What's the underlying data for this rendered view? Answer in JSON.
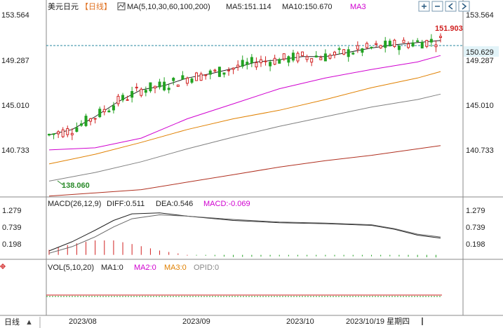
{
  "header": {
    "symbol": "美元日元",
    "period": "【日线】",
    "ma_label": "MA(5,10,30,60,100,200)",
    "ma5": "MA5:151.114",
    "ma10": "MA10:150.670",
    "ma3": "MA3"
  },
  "macd_header": {
    "label": "MACD(26,12,9)",
    "diff": "DIFF:0.511",
    "dea": "DEA:0.546",
    "macd": "MACD:-0.069"
  },
  "vol_header": {
    "label": "VOL(5,10,20)",
    "ma1": "MA1:0",
    "ma2": "MA2:0",
    "ma3": "MA3:0",
    "opid": "OPID:0"
  },
  "toolbar": {
    "icons": [
      "zoom-in-icon",
      "zoom-out-icon",
      "scroll-left-icon",
      "scroll-right-icon"
    ]
  },
  "footer": {
    "period_button": "日线",
    "period_caret": "▲",
    "x_ticks": [
      "2023/08",
      "2023/09",
      "2023/10"
    ],
    "cursor_date": "2023/10/19 星期四"
  },
  "colors": {
    "up": "#22a222",
    "down": "#d22222",
    "ma5": "#222222",
    "ma10": "#666666",
    "ma_magenta": "#d000d0",
    "ma_orange": "#e08000",
    "ma_gray": "#808080",
    "ma_red": "#b03020",
    "diff": "#222222",
    "dea": "#666666",
    "ref_line": "#2a8aa0",
    "high_label": "#d02020",
    "low_label": "#2a8a2a",
    "current_price_bg": "#e2f3f8"
  },
  "chart_data": {
    "type": "candlestick",
    "price_axis_ticks": [
      "153.564",
      "149.287",
      "145.010",
      "140.733"
    ],
    "price_ylim": [
      136.456,
      153.564
    ],
    "current_price": 150.629,
    "period_high": {
      "label": "151.903",
      "value": 151.903
    },
    "period_low": {
      "label": "138.060",
      "value": 138.06
    },
    "series": [
      {
        "name": "MA5",
        "value": 151.114
      },
      {
        "name": "MA10",
        "value": 150.67
      },
      {
        "name": "MA3",
        "value": null
      }
    ],
    "ma_curves": {
      "ma5": [
        [
          0,
          142.3
        ],
        [
          5,
          142.8
        ],
        [
          10,
          144.0
        ],
        [
          15,
          145.4
        ],
        [
          20,
          146.5
        ],
        [
          25,
          146.9
        ],
        [
          30,
          147.6
        ],
        [
          35,
          148.0
        ],
        [
          40,
          148.5
        ],
        [
          45,
          149.1
        ],
        [
          50,
          149.3
        ],
        [
          55,
          149.6
        ],
        [
          60,
          149.6
        ],
        [
          65,
          150.0
        ],
        [
          70,
          150.4
        ],
        [
          75,
          150.7
        ],
        [
          80,
          150.9
        ],
        [
          85,
          151.1
        ]
      ],
      "ma30": [
        [
          0,
          140.9
        ],
        [
          10,
          141.1
        ],
        [
          20,
          142.0
        ],
        [
          30,
          143.8
        ],
        [
          40,
          145.2
        ],
        [
          50,
          146.6
        ],
        [
          60,
          147.6
        ],
        [
          70,
          148.4
        ],
        [
          80,
          149.1
        ],
        [
          85,
          149.7
        ]
      ],
      "ma60": [
        [
          0,
          139.6
        ],
        [
          10,
          140.5
        ],
        [
          20,
          141.6
        ],
        [
          30,
          142.8
        ],
        [
          40,
          143.8
        ],
        [
          50,
          144.6
        ],
        [
          60,
          145.6
        ],
        [
          70,
          146.7
        ],
        [
          80,
          147.6
        ],
        [
          85,
          148.2
        ]
      ],
      "ma100": [
        [
          0,
          138.0
        ],
        [
          10,
          138.8
        ],
        [
          20,
          139.8
        ],
        [
          30,
          141.0
        ],
        [
          40,
          142.1
        ],
        [
          50,
          143.1
        ],
        [
          60,
          144.0
        ],
        [
          70,
          144.9
        ],
        [
          80,
          145.6
        ],
        [
          85,
          146.1
        ]
      ],
      "ma200": [
        [
          0,
          136.6
        ],
        [
          10,
          136.9
        ],
        [
          20,
          137.2
        ],
        [
          30,
          137.9
        ],
        [
          40,
          138.6
        ],
        [
          50,
          139.3
        ],
        [
          60,
          139.9
        ],
        [
          70,
          140.4
        ],
        [
          80,
          141.0
        ],
        [
          85,
          141.3
        ]
      ]
    },
    "macd": {
      "axis_ticks": [
        "1.279",
        "0.739",
        "0.198"
      ],
      "ylim": [
        -0.05,
        1.38
      ],
      "diff": [
        [
          0,
          0.12
        ],
        [
          5,
          0.4
        ],
        [
          10,
          0.75
        ],
        [
          14,
          1.05
        ],
        [
          18,
          1.25
        ],
        [
          24,
          1.28
        ],
        [
          30,
          1.18
        ],
        [
          40,
          1.05
        ],
        [
          50,
          0.98
        ],
        [
          60,
          0.95
        ],
        [
          70,
          0.9
        ],
        [
          75,
          0.78
        ],
        [
          80,
          0.6
        ],
        [
          85,
          0.51
        ]
      ],
      "dea": [
        [
          0,
          0.05
        ],
        [
          5,
          0.25
        ],
        [
          10,
          0.55
        ],
        [
          14,
          0.85
        ],
        [
          18,
          1.1
        ],
        [
          24,
          1.22
        ],
        [
          30,
          1.18
        ],
        [
          40,
          1.08
        ],
        [
          50,
          1.0
        ],
        [
          60,
          0.97
        ],
        [
          70,
          0.92
        ],
        [
          75,
          0.8
        ],
        [
          80,
          0.63
        ],
        [
          85,
          0.546
        ]
      ],
      "final_hist": -0.069
    },
    "volume": {
      "values": [
        0,
        0,
        0
      ]
    }
  }
}
